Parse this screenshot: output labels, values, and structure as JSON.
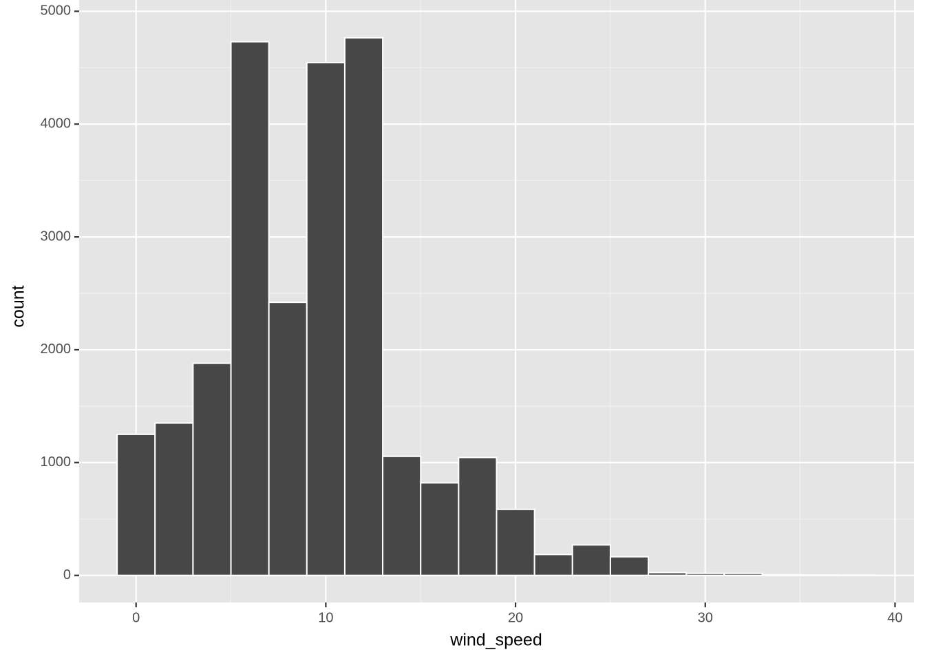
{
  "chart_data": {
    "type": "histogram",
    "x_label": "wind_speed",
    "y_label": "count",
    "bins": [
      -1,
      1,
      3,
      5,
      7,
      9,
      11,
      13,
      15,
      17,
      19,
      21,
      23,
      25,
      27,
      29,
      31,
      33,
      35,
      37,
      39
    ],
    "values": [
      1250,
      1350,
      1880,
      4730,
      2420,
      4545,
      4765,
      1055,
      820,
      1045,
      585,
      185,
      270,
      165,
      25,
      18,
      18,
      6,
      4,
      2
    ],
    "color": "#474747",
    "edge_color": "#ffffff",
    "xlim": [
      -3,
      41
    ],
    "xticks": [
      0,
      10,
      20,
      30,
      40
    ],
    "ylim": [
      -240,
      5100
    ],
    "yticks": [
      0,
      1000,
      2000,
      3000,
      4000,
      5000
    ],
    "grid": true,
    "minor_grid": true
  }
}
